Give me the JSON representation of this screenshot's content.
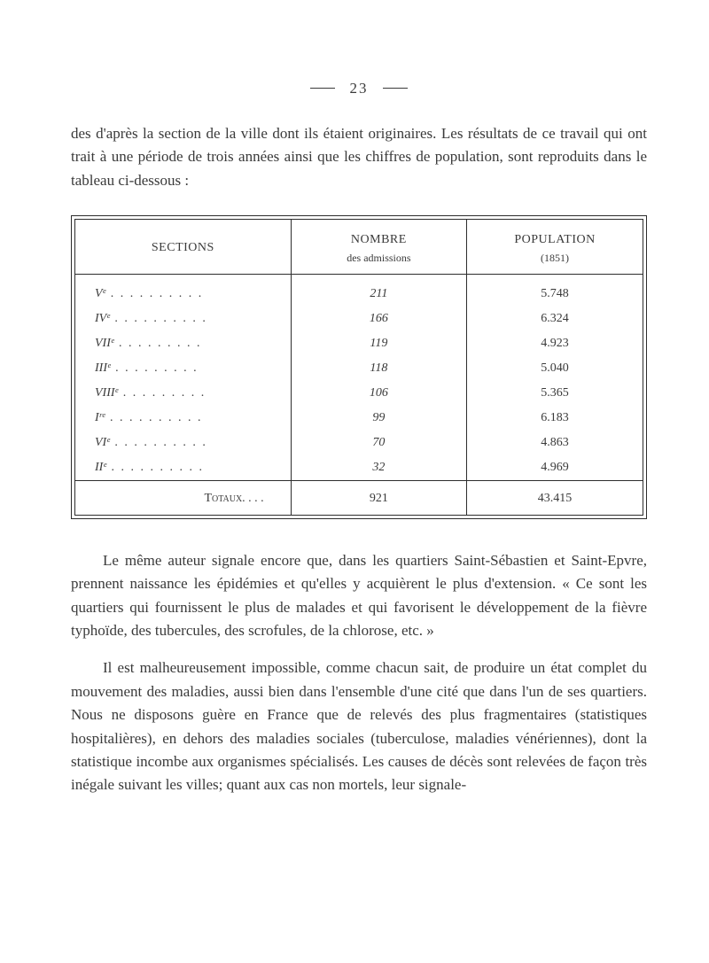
{
  "page_number": "23",
  "paragraphs": {
    "intro": "des d'après la section de la ville dont ils étaient originaires. Les résultats de ce travail qui ont trait à une période de trois années ainsi que les chiffres de population, sont reproduits dans le tableau ci-dessous :",
    "mid": "Le même auteur signale encore que, dans les quartiers Saint-Sébastien et Saint-Epvre, prennent naissance les épidémies et qu'elles y acquièrent le plus d'extension. « Ce sont les quartiers qui fournissent le plus de malades et qui favorisent le développement de la fièvre typhoïde, des tubercules, des scrofules, de la chlorose, etc. »",
    "end": "Il est malheureusement impossible, comme chacun sait, de produire un état complet du mouvement des maladies, aussi bien dans l'ensemble d'une cité que dans l'un de ses quartiers. Nous ne disposons guère en France que de relevés des plus fragmentaires (statistiques hospitalières), en dehors des maladies sociales (tuberculose, maladies vénériennes), dont la statistique incombe aux organismes spécialisés. Les causes de décès sont relevées de façon très inégale suivant les villes; quant aux cas non mortels, leur signale-"
  },
  "table": {
    "headers": {
      "sections": "SECTIONS",
      "nombre": "NOMBRE",
      "nombre_sub": "des admissions",
      "population": "POPULATION",
      "population_sub": "(1851)"
    },
    "rows": [
      {
        "section_label": "Vᵉ",
        "section_dots": ". . . . . . . . . .",
        "nombre": "211",
        "population": "5.748"
      },
      {
        "section_label": "IVᵉ",
        "section_dots": ". . . . . . . . . .",
        "nombre": "166",
        "population": "6.324"
      },
      {
        "section_label": "VIIᵉ",
        "section_dots": ". . . . . . . . .",
        "nombre": "119",
        "population": "4.923"
      },
      {
        "section_label": "IIIᵉ",
        "section_dots": ". . . . . . . . .",
        "nombre": "118",
        "population": "5.040"
      },
      {
        "section_label": "VIIIᵉ",
        "section_dots": ". . . . . . . . .",
        "nombre": "106",
        "population": "5.365"
      },
      {
        "section_label": "Iʳᵉ",
        "section_dots": ". . . . . . . . . .",
        "nombre": "99",
        "population": "6.183"
      },
      {
        "section_label": "VIᵉ",
        "section_dots": ". . . . . . . . . .",
        "nombre": "70",
        "population": "4.863"
      },
      {
        "section_label": "IIᵉ",
        "section_dots": ". . . . . . . . . .",
        "nombre": "32",
        "population": "4.969"
      }
    ],
    "totaux": {
      "label": "Totaux. . . .",
      "nombre": "921",
      "population": "43.415"
    }
  },
  "colors": {
    "text": "#3a3a3a",
    "rule": "#2d2d2d",
    "background": "#ffffff"
  },
  "typography": {
    "body_fontsize_pt": 13,
    "table_fontsize_pt": 10,
    "header_smallcaps": true
  }
}
